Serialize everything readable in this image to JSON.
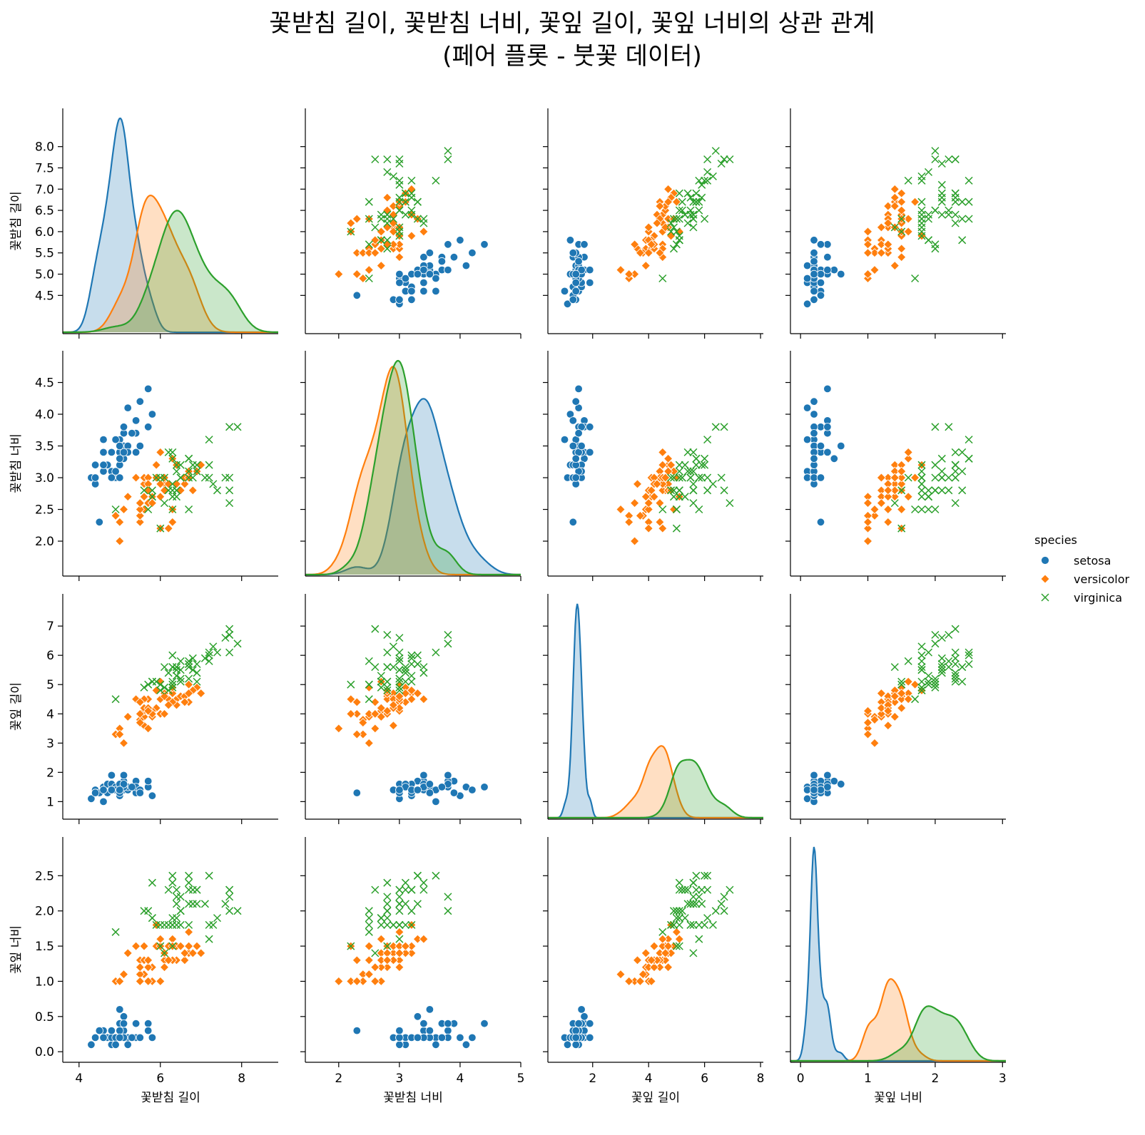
{
  "chart_data": {
    "type": "scatter",
    "kind": "pairplot",
    "title": [
      "꽃받침 길이, 꽃받침 너비, 꽃잎 길이, 꽃잎 너비의 상관 관계",
      "(페어 플롯 - 붓꽃 데이터)"
    ],
    "variables": [
      "꽃받침 길이",
      "꽃받침 너비",
      "꽃잎 길이",
      "꽃잎 너비"
    ],
    "ticks": [
      [
        4,
        6,
        8
      ],
      [
        2,
        3,
        4,
        5
      ],
      [
        2,
        4,
        6,
        8
      ],
      [
        0,
        1,
        2,
        3
      ]
    ],
    "yticks": [
      [
        "4.5",
        "5.0",
        "5.5",
        "6.0",
        "6.5",
        "7.0",
        "7.5",
        "8.0"
      ],
      [
        "2.0",
        "2.5",
        "3.0",
        "3.5",
        "4.0",
        "4.5"
      ],
      [
        "1",
        "2",
        "3",
        "4",
        "5",
        "6",
        "7"
      ],
      [
        "0.0",
        "0.5",
        "1.0",
        "1.5",
        "2.0",
        "2.5"
      ]
    ],
    "ranges": [
      [
        3.6,
        8.9
      ],
      [
        1.45,
        5.0
      ],
      [
        0.4,
        8.1
      ],
      [
        -0.15,
        3.05
      ]
    ],
    "diagonal": "kde",
    "legend": {
      "title": "species",
      "position": "right",
      "entries": [
        {
          "name": "setosa",
          "color": "#1f77b4",
          "marker": "circle"
        },
        {
          "name": "versicolor",
          "color": "#ff7f0e",
          "marker": "diamond"
        },
        {
          "name": "virginica",
          "color": "#2ca02c",
          "marker": "x"
        }
      ]
    },
    "series": [
      {
        "name": "setosa",
        "points": [
          [
            5.1,
            3.5,
            1.4,
            0.2
          ],
          [
            4.9,
            3.0,
            1.4,
            0.2
          ],
          [
            4.7,
            3.2,
            1.3,
            0.2
          ],
          [
            4.6,
            3.1,
            1.5,
            0.2
          ],
          [
            5.0,
            3.6,
            1.4,
            0.2
          ],
          [
            5.4,
            3.9,
            1.7,
            0.4
          ],
          [
            4.6,
            3.4,
            1.4,
            0.3
          ],
          [
            5.0,
            3.4,
            1.5,
            0.2
          ],
          [
            4.4,
            2.9,
            1.4,
            0.2
          ],
          [
            4.9,
            3.1,
            1.5,
            0.1
          ],
          [
            5.4,
            3.7,
            1.5,
            0.2
          ],
          [
            4.8,
            3.4,
            1.6,
            0.2
          ],
          [
            4.8,
            3.0,
            1.4,
            0.1
          ],
          [
            4.3,
            3.0,
            1.1,
            0.1
          ],
          [
            5.8,
            4.0,
            1.2,
            0.2
          ],
          [
            5.7,
            4.4,
            1.5,
            0.4
          ],
          [
            5.4,
            3.9,
            1.3,
            0.4
          ],
          [
            5.1,
            3.5,
            1.4,
            0.3
          ],
          [
            5.7,
            3.8,
            1.7,
            0.3
          ],
          [
            5.1,
            3.8,
            1.5,
            0.3
          ],
          [
            5.4,
            3.4,
            1.7,
            0.2
          ],
          [
            5.1,
            3.7,
            1.5,
            0.4
          ],
          [
            4.6,
            3.6,
            1.0,
            0.2
          ],
          [
            5.1,
            3.3,
            1.7,
            0.5
          ],
          [
            4.8,
            3.4,
            1.9,
            0.2
          ],
          [
            5.0,
            3.0,
            1.6,
            0.2
          ],
          [
            5.0,
            3.4,
            1.6,
            0.4
          ],
          [
            5.2,
            3.5,
            1.5,
            0.2
          ],
          [
            5.2,
            3.4,
            1.4,
            0.2
          ],
          [
            4.7,
            3.2,
            1.6,
            0.2
          ],
          [
            4.8,
            3.1,
            1.6,
            0.2
          ],
          [
            5.4,
            3.4,
            1.5,
            0.4
          ],
          [
            5.2,
            4.1,
            1.5,
            0.1
          ],
          [
            5.5,
            4.2,
            1.4,
            0.2
          ],
          [
            4.9,
            3.1,
            1.5,
            0.2
          ],
          [
            5.0,
            3.2,
            1.2,
            0.2
          ],
          [
            5.5,
            3.5,
            1.3,
            0.2
          ],
          [
            4.9,
            3.6,
            1.4,
            0.1
          ],
          [
            4.4,
            3.0,
            1.3,
            0.2
          ],
          [
            5.1,
            3.4,
            1.5,
            0.2
          ],
          [
            5.0,
            3.5,
            1.3,
            0.3
          ],
          [
            4.5,
            2.3,
            1.3,
            0.3
          ],
          [
            4.4,
            3.2,
            1.3,
            0.2
          ],
          [
            5.0,
            3.5,
            1.6,
            0.6
          ],
          [
            5.1,
            3.8,
            1.9,
            0.4
          ],
          [
            4.8,
            3.0,
            1.4,
            0.3
          ],
          [
            5.1,
            3.8,
            1.6,
            0.2
          ],
          [
            4.6,
            3.2,
            1.4,
            0.2
          ],
          [
            5.3,
            3.7,
            1.5,
            0.2
          ],
          [
            5.0,
            3.3,
            1.4,
            0.2
          ]
        ]
      },
      {
        "name": "versicolor",
        "points": [
          [
            7.0,
            3.2,
            4.7,
            1.4
          ],
          [
            6.4,
            3.2,
            4.5,
            1.5
          ],
          [
            6.9,
            3.1,
            4.9,
            1.5
          ],
          [
            5.5,
            2.3,
            4.0,
            1.3
          ],
          [
            6.5,
            2.8,
            4.6,
            1.5
          ],
          [
            5.7,
            2.8,
            4.5,
            1.3
          ],
          [
            6.3,
            3.3,
            4.7,
            1.6
          ],
          [
            4.9,
            2.4,
            3.3,
            1.0
          ],
          [
            6.6,
            2.9,
            4.6,
            1.3
          ],
          [
            5.2,
            2.7,
            3.9,
            1.4
          ],
          [
            5.0,
            2.0,
            3.5,
            1.0
          ],
          [
            5.9,
            3.0,
            4.2,
            1.5
          ],
          [
            6.0,
            2.2,
            4.0,
            1.0
          ],
          [
            6.1,
            2.9,
            4.7,
            1.4
          ],
          [
            5.6,
            2.9,
            3.6,
            1.3
          ],
          [
            6.7,
            3.1,
            4.4,
            1.4
          ],
          [
            5.6,
            3.0,
            4.5,
            1.5
          ],
          [
            5.8,
            2.7,
            4.1,
            1.0
          ],
          [
            6.2,
            2.2,
            4.5,
            1.5
          ],
          [
            5.6,
            2.5,
            3.9,
            1.1
          ],
          [
            5.9,
            3.2,
            4.8,
            1.8
          ],
          [
            6.1,
            2.8,
            4.0,
            1.3
          ],
          [
            6.3,
            2.5,
            4.9,
            1.5
          ],
          [
            6.1,
            2.8,
            4.7,
            1.2
          ],
          [
            6.4,
            2.9,
            4.3,
            1.3
          ],
          [
            6.6,
            3.0,
            4.4,
            1.4
          ],
          [
            6.8,
            2.8,
            4.8,
            1.4
          ],
          [
            6.7,
            3.0,
            5.0,
            1.7
          ],
          [
            6.0,
            2.9,
            4.5,
            1.5
          ],
          [
            5.7,
            2.6,
            3.5,
            1.0
          ],
          [
            5.5,
            2.4,
            3.8,
            1.1
          ],
          [
            5.5,
            2.4,
            3.7,
            1.0
          ],
          [
            5.8,
            2.7,
            3.9,
            1.2
          ],
          [
            6.0,
            2.7,
            5.1,
            1.6
          ],
          [
            5.4,
            3.0,
            4.5,
            1.5
          ],
          [
            6.0,
            3.4,
            4.5,
            1.6
          ],
          [
            6.7,
            3.1,
            4.7,
            1.5
          ],
          [
            6.3,
            2.3,
            4.4,
            1.3
          ],
          [
            5.6,
            3.0,
            4.1,
            1.3
          ],
          [
            5.5,
            2.5,
            4.0,
            1.3
          ],
          [
            5.5,
            2.6,
            4.4,
            1.2
          ],
          [
            6.1,
            3.0,
            4.6,
            1.4
          ],
          [
            5.8,
            2.6,
            4.0,
            1.2
          ],
          [
            5.0,
            2.3,
            3.3,
            1.0
          ],
          [
            5.6,
            2.7,
            4.2,
            1.3
          ],
          [
            5.7,
            3.0,
            4.2,
            1.2
          ],
          [
            5.7,
            2.9,
            4.2,
            1.3
          ],
          [
            6.2,
            2.9,
            4.3,
            1.3
          ],
          [
            5.1,
            2.5,
            3.0,
            1.1
          ],
          [
            5.7,
            2.8,
            4.1,
            1.3
          ]
        ]
      },
      {
        "name": "virginica",
        "points": [
          [
            6.3,
            3.3,
            6.0,
            2.5
          ],
          [
            5.8,
            2.7,
            5.1,
            1.9
          ],
          [
            7.1,
            3.0,
            5.9,
            2.1
          ],
          [
            6.3,
            2.9,
            5.6,
            1.8
          ],
          [
            6.5,
            3.0,
            5.8,
            2.2
          ],
          [
            7.6,
            3.0,
            6.6,
            2.1
          ],
          [
            4.9,
            2.5,
            4.5,
            1.7
          ],
          [
            7.3,
            2.9,
            6.3,
            1.8
          ],
          [
            6.7,
            2.5,
            5.8,
            1.8
          ],
          [
            7.2,
            3.6,
            6.1,
            2.5
          ],
          [
            6.5,
            3.2,
            5.1,
            2.0
          ],
          [
            6.4,
            2.7,
            5.3,
            1.9
          ],
          [
            6.8,
            3.0,
            5.5,
            2.1
          ],
          [
            5.7,
            2.5,
            5.0,
            2.0
          ],
          [
            5.8,
            2.8,
            5.1,
            2.4
          ],
          [
            6.4,
            3.2,
            5.3,
            2.3
          ],
          [
            6.5,
            3.0,
            5.5,
            1.8
          ],
          [
            7.7,
            3.8,
            6.7,
            2.2
          ],
          [
            7.7,
            2.6,
            6.9,
            2.3
          ],
          [
            6.0,
            2.2,
            5.0,
            1.5
          ],
          [
            6.9,
            3.2,
            5.7,
            2.3
          ],
          [
            5.6,
            2.8,
            4.9,
            2.0
          ],
          [
            7.7,
            2.8,
            6.7,
            2.0
          ],
          [
            6.3,
            2.7,
            4.9,
            1.8
          ],
          [
            6.7,
            3.3,
            5.7,
            2.1
          ],
          [
            7.2,
            3.2,
            6.0,
            1.8
          ],
          [
            6.2,
            2.8,
            4.8,
            1.8
          ],
          [
            6.1,
            3.0,
            4.9,
            1.8
          ],
          [
            6.4,
            2.8,
            5.6,
            2.1
          ],
          [
            7.2,
            3.0,
            5.8,
            1.6
          ],
          [
            7.4,
            2.8,
            6.1,
            1.9
          ],
          [
            7.9,
            3.8,
            6.4,
            2.0
          ],
          [
            6.4,
            2.8,
            5.6,
            2.2
          ],
          [
            6.3,
            2.8,
            5.1,
            1.5
          ],
          [
            6.1,
            2.6,
            5.6,
            1.4
          ],
          [
            7.7,
            3.0,
            6.1,
            2.3
          ],
          [
            6.3,
            3.4,
            5.6,
            2.4
          ],
          [
            6.4,
            3.1,
            5.5,
            1.8
          ],
          [
            6.0,
            3.0,
            4.8,
            1.8
          ],
          [
            6.9,
            3.1,
            5.4,
            2.1
          ],
          [
            6.7,
            3.1,
            5.6,
            2.4
          ],
          [
            6.9,
            3.1,
            5.1,
            2.3
          ],
          [
            5.8,
            2.7,
            5.1,
            1.9
          ],
          [
            6.8,
            3.2,
            5.9,
            2.3
          ],
          [
            6.7,
            3.3,
            5.7,
            2.5
          ],
          [
            6.7,
            3.0,
            5.2,
            2.3
          ],
          [
            6.3,
            2.5,
            5.0,
            1.9
          ],
          [
            6.5,
            3.0,
            5.2,
            2.0
          ],
          [
            6.2,
            3.4,
            5.4,
            2.3
          ],
          [
            5.9,
            3.0,
            5.1,
            1.8
          ]
        ]
      }
    ]
  }
}
